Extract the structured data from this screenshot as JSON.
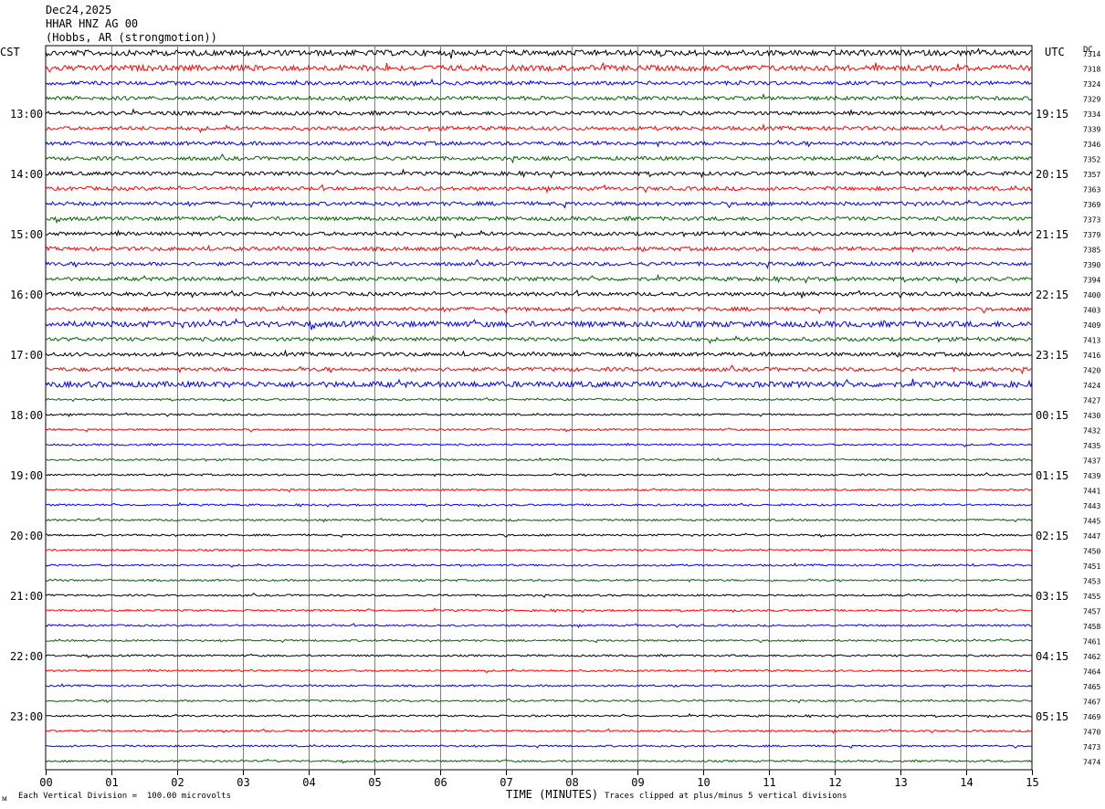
{
  "header": {
    "date": "Dec24,2025",
    "station": "HHAR HNZ AG 00",
    "location": "(Hobbs, AR (strongmotion))"
  },
  "left_axis_title": "CST",
  "right_axis_title": "UTC",
  "dc_title": "DC",
  "footer": {
    "scale_note": "Each Vertical Division =  100.00 microvolts",
    "xlabel": "TIME (MINUTES)",
    "clip_note": "Traces clipped at plus/minus 5 vertical divisions",
    "corner_mark": "ᴍ"
  },
  "chart_data": {
    "type": "line",
    "title": "Dec24,2025 HHAR HNZ AG 00 (Hobbs, AR (strongmotion))",
    "xlabel": "TIME (MINUTES)",
    "xlim": [
      0,
      15
    ],
    "x_ticks": [
      "00",
      "01",
      "02",
      "03",
      "04",
      "05",
      "06",
      "07",
      "08",
      "09",
      "10",
      "11",
      "12",
      "13",
      "14",
      "15"
    ],
    "left_hour_labels": [
      "13:00",
      "14:00",
      "15:00",
      "16:00",
      "17:00",
      "18:00",
      "19:00",
      "20:00",
      "21:00",
      "22:00",
      "23:00"
    ],
    "right_hour_labels": [
      "19:15",
      "20:15",
      "21:15",
      "22:15",
      "23:15",
      "00:15",
      "01:15",
      "02:15",
      "03:15",
      "04:15",
      "05:15"
    ],
    "trace_colors": [
      "#000000",
      "#ff0000",
      "#0000ff",
      "#006400"
    ],
    "dc_offsets": [
      "7314",
      "7318",
      "7324",
      "7329",
      "7334",
      "7339",
      "7346",
      "7352",
      "7357",
      "7363",
      "7369",
      "7373",
      "7379",
      "7385",
      "7390",
      "7394",
      "7400",
      "7403",
      "7409",
      "7413",
      "7416",
      "7420",
      "7424",
      "7427",
      "7430",
      "7432",
      "7435",
      "7437",
      "7439",
      "7441",
      "7443",
      "7445",
      "7447",
      "7450",
      "7451",
      "7453",
      "7455",
      "7457",
      "7458",
      "7461",
      "7462",
      "7464",
      "7465",
      "7467",
      "7469",
      "7470",
      "7473",
      "7474"
    ],
    "trace_amplitude": [
      3,
      3,
      2,
      2,
      2,
      2,
      2,
      2,
      2,
      2,
      2,
      2,
      2,
      2,
      2,
      2,
      2,
      2,
      3,
      2,
      2,
      2,
      3,
      1,
      1,
      1,
      1,
      1,
      1,
      1,
      1,
      1,
      1,
      1,
      1,
      1,
      1,
      1,
      1,
      1,
      1,
      1,
      1,
      1,
      1,
      1,
      1,
      1
    ]
  }
}
